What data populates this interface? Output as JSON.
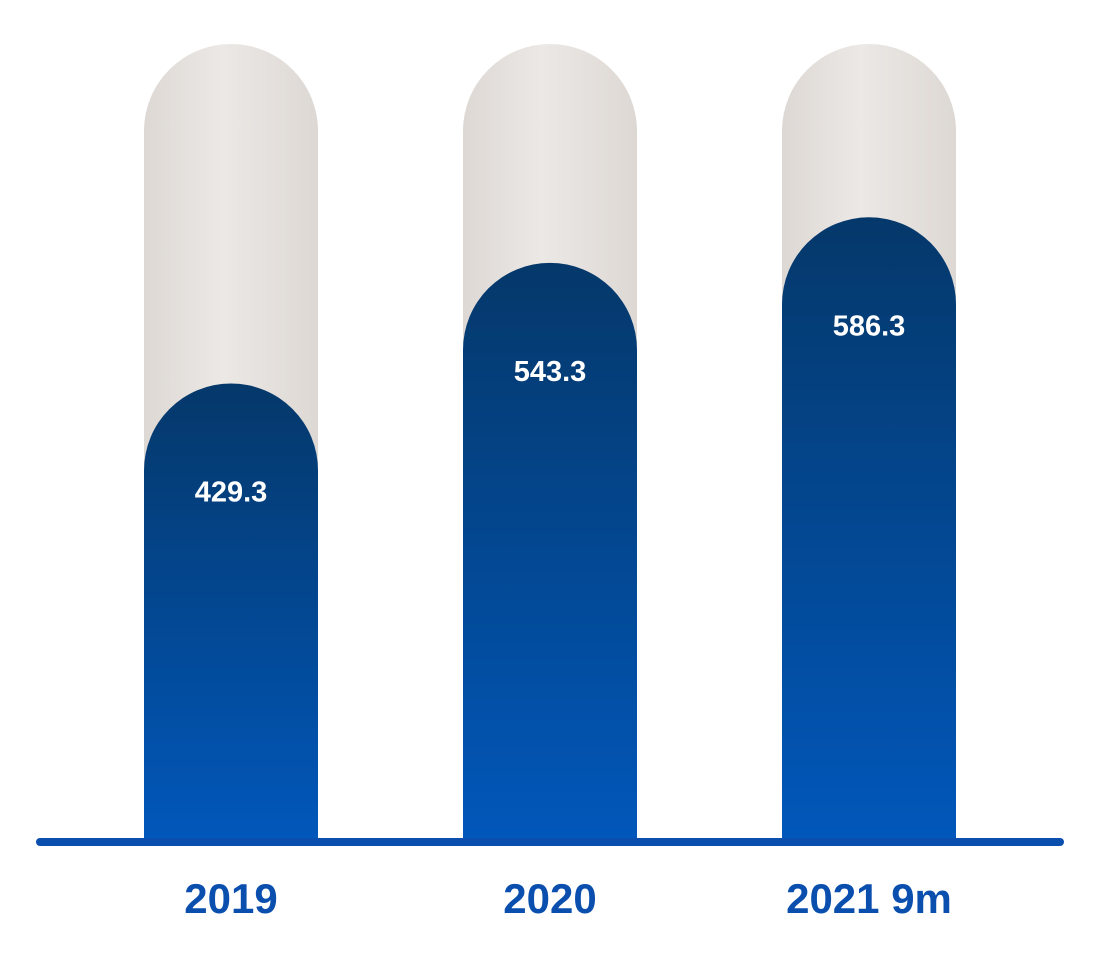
{
  "chart_data": {
    "type": "bar",
    "categories": [
      "2019",
      "2020",
      "2021 9m"
    ],
    "values": [
      429.3,
      543.3,
      586.3
    ],
    "value_labels": [
      "429.3",
      "543.3",
      "586.3"
    ],
    "title": "",
    "xlabel": "",
    "ylabel": "",
    "ylim": [
      0,
      750
    ],
    "grid": false,
    "legend": "none",
    "colors": {
      "bar_top": "#05386a",
      "bar_bottom": "#0157ba",
      "track": "#ece8e5",
      "track_edge": "#ddd8d4",
      "baseline": "#0b4fae",
      "category_text": "#0b4fae",
      "value_text": "#ffffff"
    }
  }
}
